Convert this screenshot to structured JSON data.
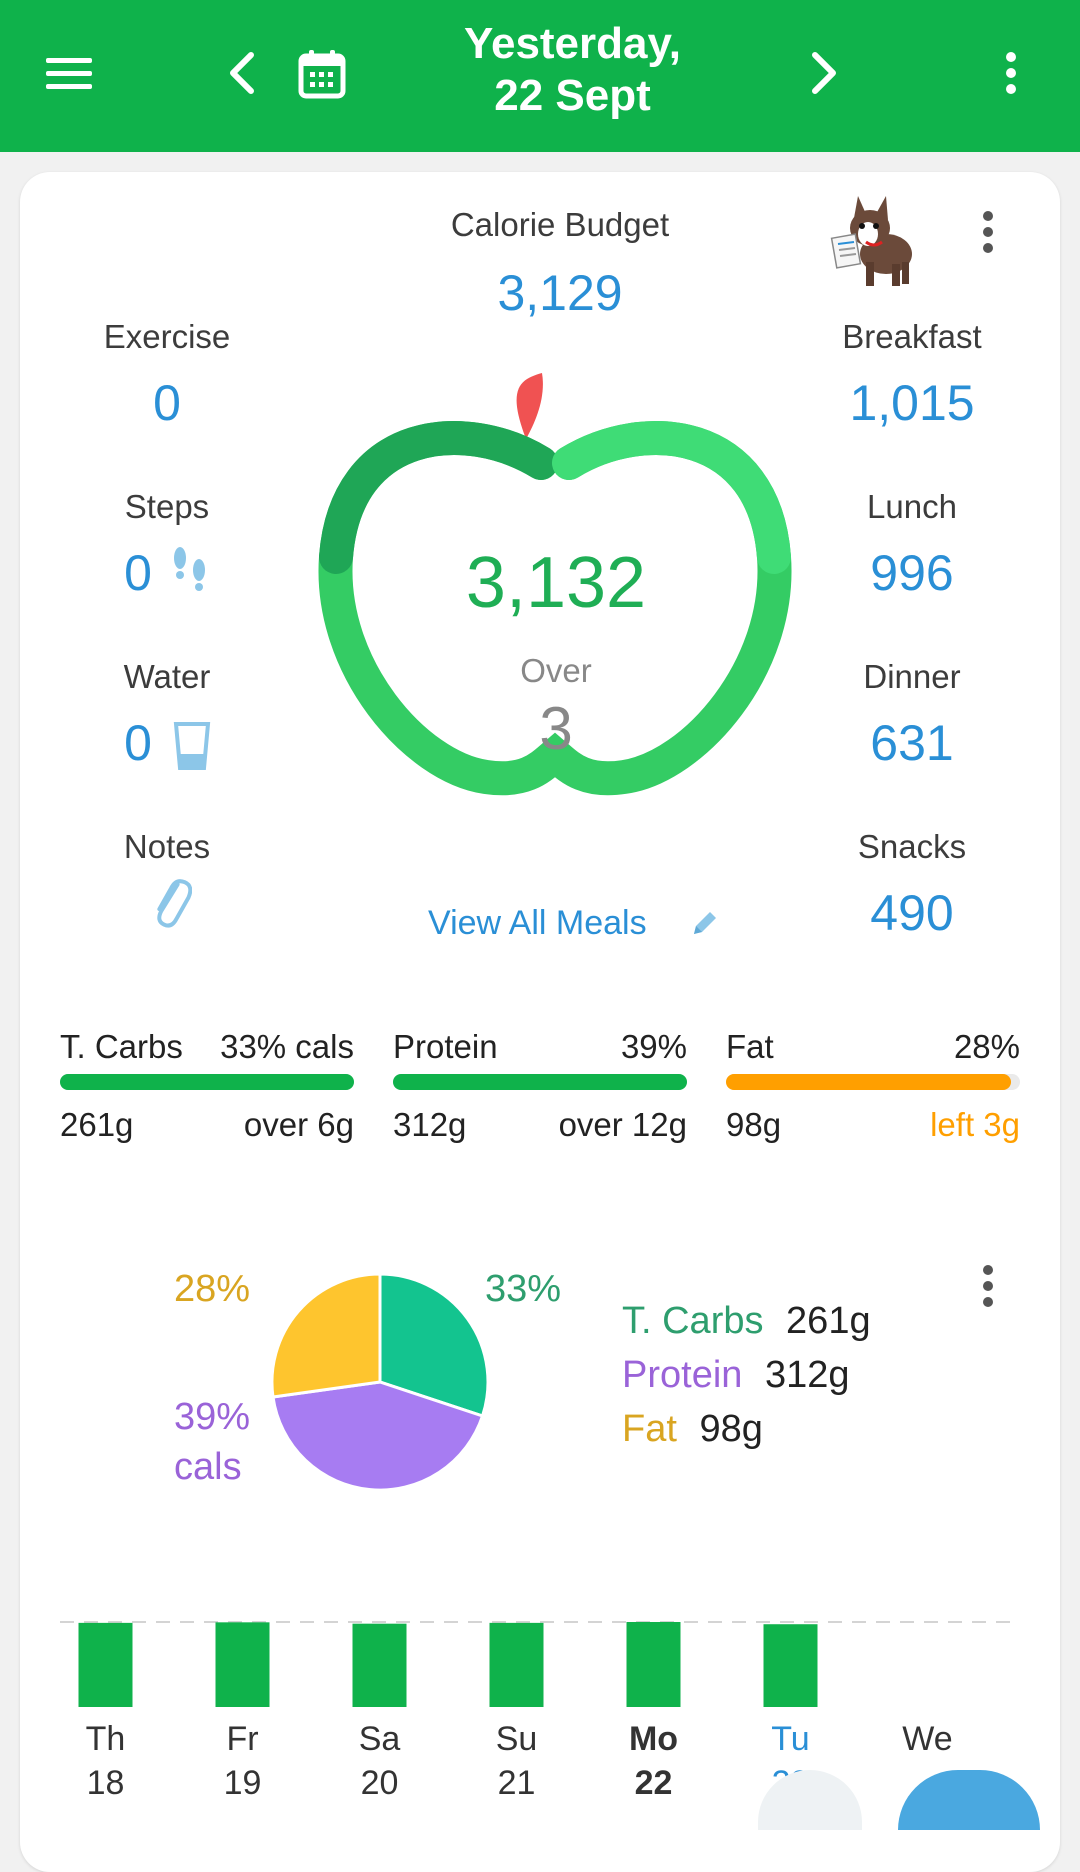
{
  "header": {
    "date_line1": "Yesterday,",
    "date_line2": "22 Sept"
  },
  "summary": {
    "calorie_budget_label": "Calorie Budget",
    "calorie_budget_value": "3,129",
    "consumed_value": "3,132",
    "status_label": "Over",
    "status_value": "3",
    "view_all_meals": "View All Meals"
  },
  "left_stats": {
    "exercise_label": "Exercise",
    "exercise_value": "0",
    "steps_label": "Steps",
    "steps_value": "0",
    "water_label": "Water",
    "water_value": "0",
    "notes_label": "Notes"
  },
  "meals": {
    "breakfast_label": "Breakfast",
    "breakfast_value": "1,015",
    "lunch_label": "Lunch",
    "lunch_value": "996",
    "dinner_label": "Dinner",
    "dinner_value": "631",
    "snacks_label": "Snacks",
    "snacks_value": "490"
  },
  "macros": [
    {
      "name": "T. Carbs",
      "pct": "33% cals",
      "grams": "261g",
      "delta": "over 6g",
      "fill": 1.0,
      "color": "#0fb24b",
      "delta_color": "#222222"
    },
    {
      "name": "Protein",
      "pct": "39%",
      "grams": "312g",
      "delta": "over 12g",
      "fill": 1.0,
      "color": "#0fb24b",
      "delta_color": "#222222"
    },
    {
      "name": "Fat",
      "pct": "28%",
      "grams": "98g",
      "delta": "left 3g",
      "fill": 0.97,
      "color": "#ff9f00",
      "delta_color": "#ff9f00"
    }
  ],
  "pie": {
    "labels": {
      "carbs_pct": "33%",
      "fat_pct": "28%",
      "protein_pct": "39%",
      "protein_unit": "cals"
    },
    "legend": [
      {
        "name": "T. Carbs",
        "amount": "261g",
        "color": "#2e9e6e"
      },
      {
        "name": "Protein",
        "amount": "312g",
        "color": "#9a63d8"
      },
      {
        "name": "Fat",
        "amount": "98g",
        "color": "#d9a521"
      }
    ]
  },
  "chart_data": {
    "type": "bar",
    "categories": [
      "Th 18",
      "Fr 19",
      "Sa 20",
      "Su 21",
      "Mo 22",
      "Tu 23",
      "We"
    ],
    "values": [
      3100,
      3120,
      3070,
      3100,
      3132,
      3050,
      null
    ],
    "budget_line": 3129
  },
  "week": [
    {
      "day": "Th",
      "date": "18"
    },
    {
      "day": "Fr",
      "date": "19"
    },
    {
      "day": "Sa",
      "date": "20"
    },
    {
      "day": "Su",
      "date": "21"
    },
    {
      "day": "Mo",
      "date": "22"
    },
    {
      "day": "Tu",
      "date": "23"
    },
    {
      "day": "We",
      "date": ""
    }
  ],
  "colors": {
    "brand_green": "#0fb24b",
    "value_blue": "#2a8fd6",
    "carbs_slice": "#13c48f",
    "protein_slice": "#a77cf2",
    "fat_slice": "#fec52e"
  }
}
